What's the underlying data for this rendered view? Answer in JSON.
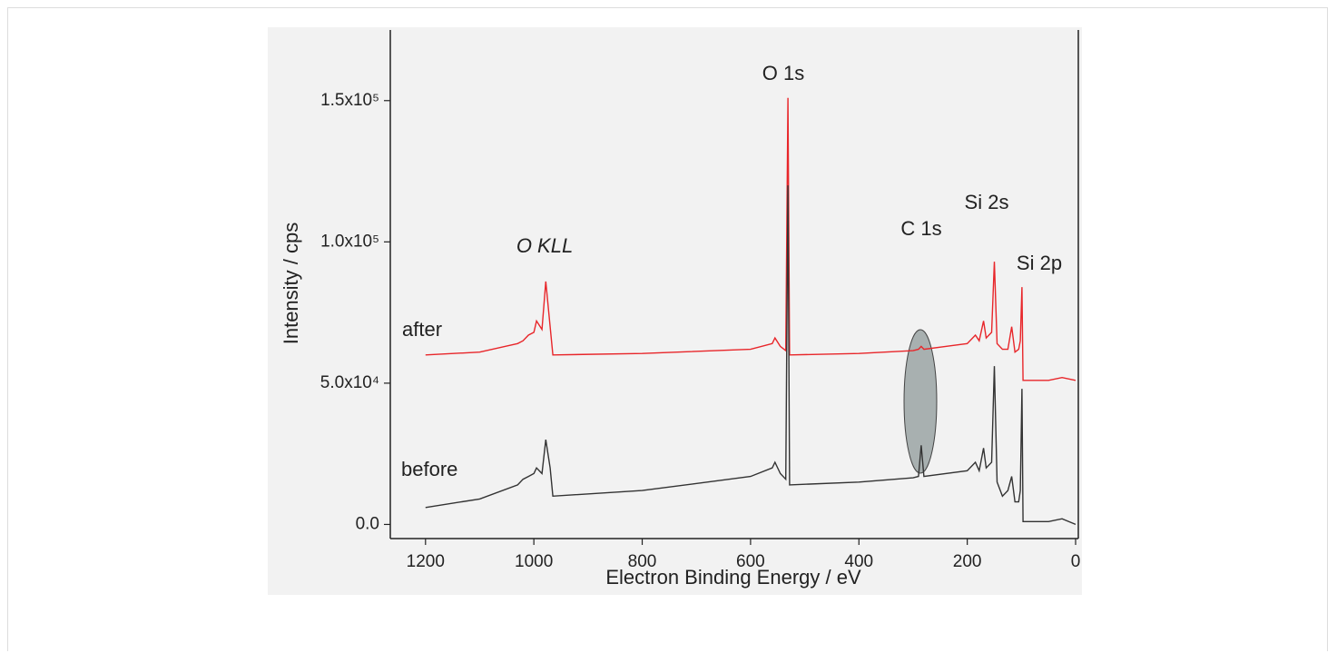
{
  "chart_data": {
    "type": "line",
    "x_label": "Electron Binding Energy / eV",
    "y_label": "Intensity / cps",
    "x": [
      1200,
      1100,
      1030,
      1020,
      1010,
      1000,
      995,
      985,
      978,
      970,
      965,
      800,
      600,
      560,
      555,
      545,
      535,
      531,
      528,
      400,
      300,
      290,
      285,
      280,
      200,
      185,
      178,
      170,
      165,
      155,
      150,
      145,
      135,
      125,
      118,
      112,
      105,
      102,
      99,
      97,
      50,
      25,
      0
    ],
    "series": [
      {
        "name": "after",
        "color": "#e8262a",
        "values": [
          60000,
          61000,
          64000,
          65000,
          67000,
          68000,
          72000,
          69000,
          86000,
          70000,
          60000,
          60500,
          62000,
          64000,
          66000,
          63000,
          61500,
          151000,
          60000,
          60500,
          61500,
          62000,
          63000,
          62000,
          64000,
          67000,
          65000,
          72000,
          66000,
          68000,
          93000,
          64000,
          62000,
          62000,
          70000,
          61000,
          62000,
          65000,
          84000,
          51000,
          51000,
          52000,
          51000
        ]
      },
      {
        "name": "before",
        "color": "#333333",
        "values": [
          6000,
          9000,
          14000,
          16000,
          17000,
          18000,
          20000,
          18000,
          30000,
          20000,
          10000,
          12000,
          17000,
          20000,
          22000,
          18000,
          16000,
          120000,
          14000,
          15000,
          16500,
          17000,
          28000,
          17000,
          19000,
          22000,
          19000,
          27000,
          20000,
          22000,
          56000,
          15000,
          10000,
          12000,
          17000,
          8000,
          8000,
          12000,
          48000,
          1000,
          1000,
          2000,
          0
        ]
      }
    ],
    "annotations": [
      "O 1s",
      "O KLL",
      "C 1s",
      "Si 2s",
      "Si 2p"
    ],
    "xlim": [
      1265,
      -5
    ],
    "xticks": [
      1200,
      1000,
      800,
      600,
      400,
      200,
      0
    ],
    "ylim": [
      -5000,
      175000
    ],
    "yticks": [
      {
        "value": 0,
        "label": "0.0"
      },
      {
        "value": 50000,
        "label": "5.0x10⁴"
      },
      {
        "value": 100000,
        "label": "1.0x10⁵"
      },
      {
        "value": 150000,
        "label": "1.5x10⁵"
      }
    ]
  }
}
